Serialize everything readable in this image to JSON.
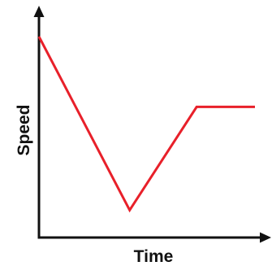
{
  "chart_data": {
    "type": "line",
    "xlabel": "Time",
    "ylabel": "Speed",
    "xlim": [
      0,
      1
    ],
    "ylim": [
      0,
      1
    ],
    "grid": false,
    "legend": "none",
    "ticks": false,
    "series": [
      {
        "color": "#e8202a",
        "x": [
          0,
          0.42,
          0.73,
          1
        ],
        "y": [
          0.9,
          0.11,
          0.58,
          0.58
        ]
      }
    ]
  },
  "colors": {
    "axis": "#111111",
    "line": "#e8202a"
  }
}
